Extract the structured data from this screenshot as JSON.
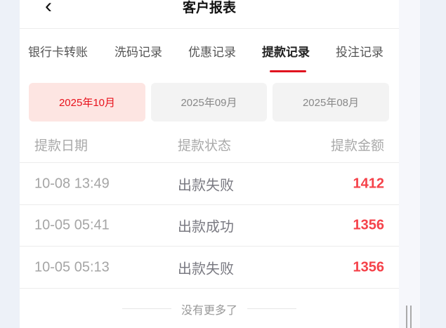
{
  "header": {
    "title": "客户报表",
    "back_icon": "chevron-left-icon"
  },
  "tabs": [
    {
      "label": "银行卡转账"
    },
    {
      "label": "洗码记录"
    },
    {
      "label": "优惠记录"
    },
    {
      "label": "提款记录",
      "active": true
    },
    {
      "label": "投注记录"
    }
  ],
  "months": [
    {
      "label": "2025年10月",
      "active": true
    },
    {
      "label": "2025年09月"
    },
    {
      "label": "2025年08月"
    }
  ],
  "table": {
    "headers": [
      "提款日期",
      "提款状态",
      "提款金额"
    ],
    "rows": [
      {
        "date": "10-08 13:49",
        "status": "出款失败",
        "amount": "1412"
      },
      {
        "date": "10-05 05:41",
        "status": "出款成功",
        "amount": "1356"
      },
      {
        "date": "10-05 05:13",
        "status": "出款失败",
        "amount": "1356"
      }
    ]
  },
  "footer": "没有更多了",
  "colors": {
    "accent": "#e0141f",
    "amount": "#f5424a",
    "active_month_bg": "#fde5e2"
  }
}
